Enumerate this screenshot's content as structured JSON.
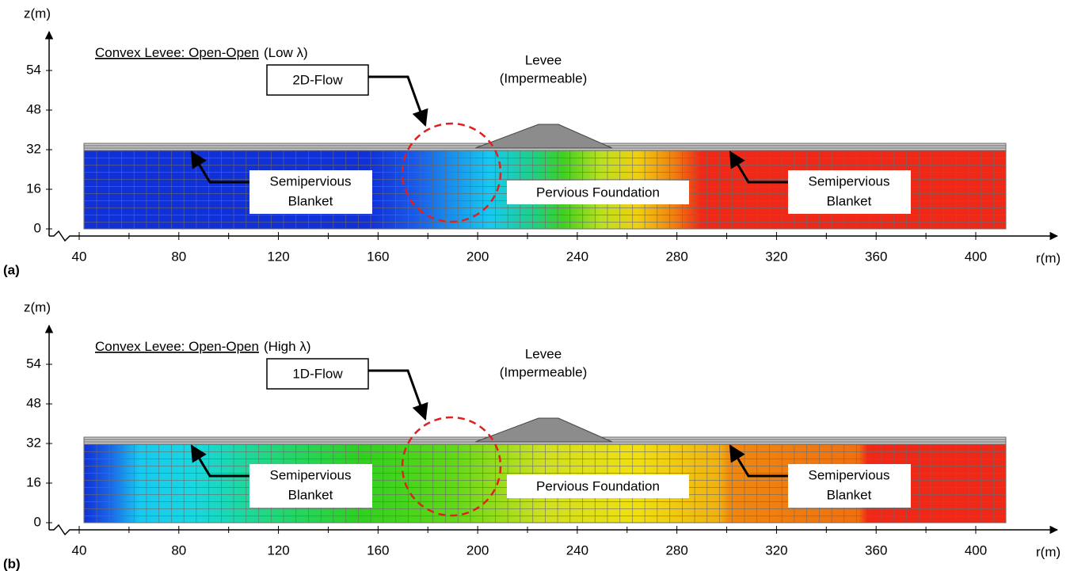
{
  "panels": [
    {
      "label": "(a)",
      "title_underlined": "Convex Levee:  Open-Open",
      "title_rest": "(Low λ)",
      "flow": "2D-Flow",
      "levee": [
        "Levee",
        "(Impermeable)"
      ],
      "left_blanket": [
        "Semipervious",
        "Blanket"
      ],
      "foundation": "Pervious Foundation",
      "right_blanket": [
        "Semipervious",
        "Blanket"
      ],
      "z_axis": "z(m)",
      "r_axis": "r(m)",
      "yticks": [
        0,
        16,
        32,
        48,
        54
      ],
      "xticks": [
        40,
        80,
        120,
        160,
        200,
        240,
        280,
        320,
        360,
        400
      ]
    },
    {
      "label": "(b)",
      "title_underlined": "Convex Levee:  Open-Open",
      "title_rest": "(High λ)",
      "flow": "1D-Flow",
      "levee": [
        "Levee",
        "(Impermeable)"
      ],
      "left_blanket": [
        "Semipervious",
        "Blanket"
      ],
      "foundation": "Pervious Foundation",
      "right_blanket": [
        "Semipervious",
        "Blanket"
      ],
      "z_axis": "z(m)",
      "r_axis": "r(m)",
      "yticks": [
        0,
        16,
        32,
        48,
        54
      ],
      "xticks": [
        40,
        80,
        120,
        160,
        200,
        240,
        280,
        320,
        360,
        400
      ]
    }
  ]
}
